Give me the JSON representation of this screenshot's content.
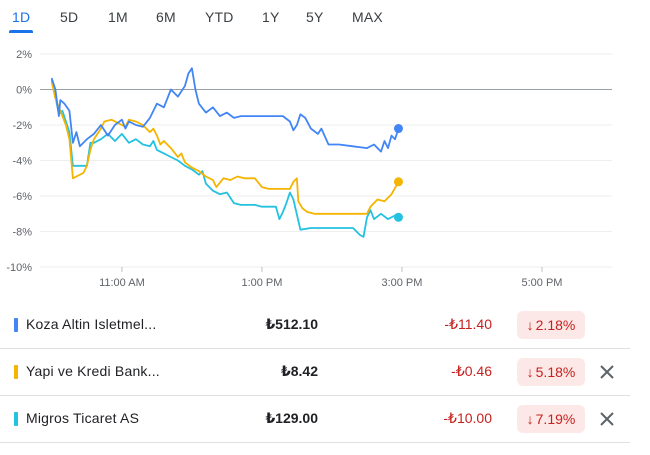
{
  "range_tabs": [
    "1D",
    "5D",
    "1M",
    "6M",
    "YTD",
    "1Y",
    "5Y",
    "MAX"
  ],
  "active_tab": "1D",
  "colors": {
    "accent": "#1a73e8",
    "negative": "#c5221f",
    "negative_bg": "#fce8e6",
    "gridline": "#eeeeee",
    "zero_line": "#9aa0a6"
  },
  "chart_data": {
    "type": "line",
    "y_tick_labels": [
      "2%",
      "0%",
      "-2%",
      "-4%",
      "-6%",
      "-8%",
      "-10%"
    ],
    "x_tick_labels": [
      "11:00 AM",
      "1:00 PM",
      "3:00 PM",
      "5:00 PM"
    ],
    "x_ticks_hours": [
      11,
      13,
      15,
      17
    ],
    "xlim_hours": [
      9.83,
      18.0
    ],
    "ylim": [
      -10,
      2
    ],
    "grid": true,
    "baseline": 0,
    "series": [
      {
        "name": "Koza Altin Isletmel...",
        "color": "#4285f4",
        "points": [
          [
            10.0,
            0.6
          ],
          [
            10.05,
            0.0
          ],
          [
            10.1,
            -1.5
          ],
          [
            10.12,
            -0.6
          ],
          [
            10.18,
            -0.8
          ],
          [
            10.25,
            -1.2
          ],
          [
            10.3,
            -3.0
          ],
          [
            10.35,
            -2.4
          ],
          [
            10.4,
            -3.2
          ],
          [
            10.5,
            -2.8
          ],
          [
            10.6,
            -2.5
          ],
          [
            10.7,
            -2.0
          ],
          [
            10.8,
            -2.6
          ],
          [
            10.9,
            -2.0
          ],
          [
            11.0,
            -1.7
          ],
          [
            11.05,
            -2.2
          ],
          [
            11.1,
            -1.8
          ],
          [
            11.2,
            -2.0
          ],
          [
            11.3,
            -2.1
          ],
          [
            11.4,
            -1.6
          ],
          [
            11.5,
            -0.8
          ],
          [
            11.6,
            -1.0
          ],
          [
            11.7,
            0.0
          ],
          [
            11.8,
            -0.4
          ],
          [
            11.9,
            0.2
          ],
          [
            11.95,
            0.9
          ],
          [
            12.0,
            1.2
          ],
          [
            12.05,
            0.0
          ],
          [
            12.1,
            -0.8
          ],
          [
            12.2,
            -1.3
          ],
          [
            12.3,
            -1.0
          ],
          [
            12.4,
            -1.5
          ],
          [
            12.5,
            -1.3
          ],
          [
            12.6,
            -1.6
          ],
          [
            12.7,
            -1.5
          ],
          [
            12.9,
            -1.5
          ],
          [
            13.1,
            -1.5
          ],
          [
            13.3,
            -1.5
          ],
          [
            13.4,
            -1.8
          ],
          [
            13.45,
            -2.3
          ],
          [
            13.5,
            -2.0
          ],
          [
            13.55,
            -1.4
          ],
          [
            13.62,
            -1.6
          ],
          [
            13.7,
            -2.2
          ],
          [
            13.8,
            -2.5
          ],
          [
            13.85,
            -2.2
          ],
          [
            13.95,
            -3.1
          ],
          [
            14.1,
            -3.1
          ],
          [
            14.3,
            -3.2
          ],
          [
            14.5,
            -3.3
          ],
          [
            14.6,
            -3.1
          ],
          [
            14.7,
            -3.5
          ],
          [
            14.75,
            -2.9
          ],
          [
            14.8,
            -3.3
          ],
          [
            14.85,
            -2.6
          ],
          [
            14.9,
            -2.8
          ],
          [
            14.95,
            -2.2
          ]
        ]
      },
      {
        "name": "Yapi ve Kredi Bank...",
        "color": "#f4b400",
        "points": [
          [
            10.0,
            0.4
          ],
          [
            10.05,
            -0.5
          ],
          [
            10.1,
            -1.0
          ],
          [
            10.15,
            -1.5
          ],
          [
            10.2,
            -2.0
          ],
          [
            10.25,
            -2.8
          ],
          [
            10.3,
            -5.0
          ],
          [
            10.35,
            -4.9
          ],
          [
            10.45,
            -4.7
          ],
          [
            10.5,
            -4.3
          ],
          [
            10.55,
            -3.4
          ],
          [
            10.6,
            -2.8
          ],
          [
            10.7,
            -2.2
          ],
          [
            10.75,
            -1.8
          ],
          [
            10.85,
            -1.7
          ],
          [
            10.95,
            -1.9
          ],
          [
            11.05,
            -2.1
          ],
          [
            11.1,
            -1.7
          ],
          [
            11.2,
            -1.8
          ],
          [
            11.3,
            -2.0
          ],
          [
            11.4,
            -2.4
          ],
          [
            11.45,
            -2.2
          ],
          [
            11.5,
            -2.6
          ],
          [
            11.55,
            -3.1
          ],
          [
            11.6,
            -2.9
          ],
          [
            11.7,
            -3.3
          ],
          [
            11.8,
            -3.8
          ],
          [
            11.85,
            -3.6
          ],
          [
            11.9,
            -4.1
          ],
          [
            12.0,
            -4.4
          ],
          [
            12.1,
            -4.6
          ],
          [
            12.2,
            -4.9
          ],
          [
            12.3,
            -5.1
          ],
          [
            12.35,
            -5.5
          ],
          [
            12.45,
            -5.0
          ],
          [
            12.55,
            -5.1
          ],
          [
            12.65,
            -4.9
          ],
          [
            12.75,
            -5.0
          ],
          [
            12.9,
            -5.0
          ],
          [
            13.0,
            -5.5
          ],
          [
            13.1,
            -5.6
          ],
          [
            13.2,
            -5.6
          ],
          [
            13.3,
            -5.6
          ],
          [
            13.4,
            -5.6
          ],
          [
            13.45,
            -5.2
          ],
          [
            13.5,
            -5.0
          ],
          [
            13.52,
            -6.3
          ],
          [
            13.58,
            -6.7
          ],
          [
            13.65,
            -6.9
          ],
          [
            13.75,
            -7.0
          ],
          [
            13.9,
            -7.0
          ],
          [
            14.1,
            -7.0
          ],
          [
            14.3,
            -7.0
          ],
          [
            14.5,
            -7.0
          ],
          [
            14.55,
            -6.6
          ],
          [
            14.65,
            -6.2
          ],
          [
            14.75,
            -6.3
          ],
          [
            14.85,
            -5.9
          ],
          [
            14.95,
            -5.2
          ]
        ]
      },
      {
        "name": "Migros Ticaret AS",
        "color": "#24c1e0",
        "points": [
          [
            10.0,
            0.5
          ],
          [
            10.05,
            -0.4
          ],
          [
            10.1,
            -1.4
          ],
          [
            10.15,
            -1.2
          ],
          [
            10.2,
            -1.8
          ],
          [
            10.25,
            -2.4
          ],
          [
            10.3,
            -4.3
          ],
          [
            10.4,
            -4.3
          ],
          [
            10.5,
            -4.3
          ],
          [
            10.55,
            -3.0
          ],
          [
            10.6,
            -3.0
          ],
          [
            10.7,
            -2.8
          ],
          [
            10.8,
            -2.5
          ],
          [
            10.9,
            -2.9
          ],
          [
            11.0,
            -2.5
          ],
          [
            11.1,
            -3.0
          ],
          [
            11.2,
            -2.8
          ],
          [
            11.3,
            -3.1
          ],
          [
            11.4,
            -3.2
          ],
          [
            11.45,
            -2.9
          ],
          [
            11.5,
            -3.4
          ],
          [
            11.6,
            -3.6
          ],
          [
            11.7,
            -3.8
          ],
          [
            11.8,
            -4.0
          ],
          [
            11.9,
            -4.3
          ],
          [
            12.0,
            -4.5
          ],
          [
            12.1,
            -4.8
          ],
          [
            12.15,
            -4.6
          ],
          [
            12.2,
            -5.3
          ],
          [
            12.3,
            -5.7
          ],
          [
            12.4,
            -5.9
          ],
          [
            12.5,
            -5.8
          ],
          [
            12.6,
            -6.4
          ],
          [
            12.7,
            -6.5
          ],
          [
            12.8,
            -6.5
          ],
          [
            12.9,
            -6.5
          ],
          [
            13.0,
            -6.6
          ],
          [
            13.1,
            -6.6
          ],
          [
            13.2,
            -6.6
          ],
          [
            13.25,
            -7.3
          ],
          [
            13.3,
            -6.9
          ],
          [
            13.35,
            -6.4
          ],
          [
            13.4,
            -5.8
          ],
          [
            13.45,
            -6.2
          ],
          [
            13.55,
            -7.9
          ],
          [
            13.7,
            -7.8
          ],
          [
            13.9,
            -7.8
          ],
          [
            14.1,
            -7.8
          ],
          [
            14.3,
            -7.8
          ],
          [
            14.4,
            -8.2
          ],
          [
            14.45,
            -8.3
          ],
          [
            14.5,
            -7.2
          ],
          [
            14.55,
            -6.8
          ],
          [
            14.6,
            -7.3
          ],
          [
            14.7,
            -7.0
          ],
          [
            14.8,
            -7.3
          ],
          [
            14.9,
            -7.1
          ],
          [
            14.95,
            -7.2
          ]
        ]
      }
    ]
  },
  "rows": [
    {
      "name": "Koza Altin Isletmel...",
      "price": "₺512.10",
      "change": "-₺11.40",
      "arrow": "↓",
      "percent": "2.18%",
      "color": "#4285f4",
      "removable": false
    },
    {
      "name": "Yapi ve Kredi Bank...",
      "price": "₺8.42",
      "change": "-₺0.46",
      "arrow": "↓",
      "percent": "5.18%",
      "color": "#f4b400",
      "removable": true
    },
    {
      "name": "Migros Ticaret AS",
      "price": "₺129.00",
      "change": "-₺10.00",
      "arrow": "↓",
      "percent": "7.19%",
      "color": "#24c1e0",
      "removable": true
    }
  ]
}
